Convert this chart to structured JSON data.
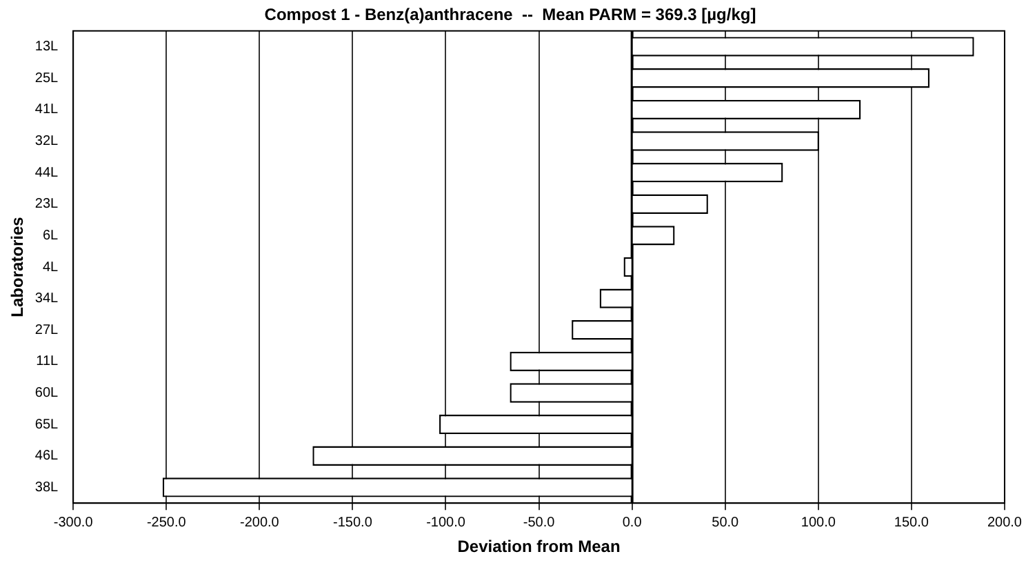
{
  "chart_data": {
    "type": "bar",
    "orientation": "horizontal",
    "title": "Compost 1 - Benz(a)anthracene  --  Mean PARM = 369.3 [µg/kg]",
    "xlabel": "Deviation from Mean",
    "ylabel": "Laboratories",
    "categories": [
      "13L",
      "25L",
      "41L",
      "32L",
      "44L",
      "23L",
      "6L",
      "4L",
      "34L",
      "27L",
      "11L",
      "60L",
      "65L",
      "46L",
      "38L"
    ],
    "values": [
      183.6,
      159.7,
      122.8,
      100.4,
      81,
      40.8,
      22.9,
      -4.5,
      -17.4,
      -32.4,
      -65.6,
      -65.6,
      -103.5,
      -171.5,
      -252
    ],
    "color": "#ffffff",
    "xlim": [
      -300,
      200
    ],
    "xticks": [
      {
        "value": -300,
        "label": "-300.0"
      },
      {
        "value": -250,
        "label": "-250.0"
      },
      {
        "value": -200,
        "label": "-200.0"
      },
      {
        "value": -150,
        "label": "-150.0"
      },
      {
        "value": -100,
        "label": "-100.0"
      },
      {
        "value": -50,
        "label": "-50.0"
      },
      {
        "value": 0,
        "label": "0.0"
      },
      {
        "value": 50,
        "label": "50.0"
      },
      {
        "value": 100,
        "label": "100.0"
      },
      {
        "value": 150,
        "label": "150.0"
      },
      {
        "value": 200,
        "label": "200.0"
      }
    ],
    "grid": "x"
  }
}
